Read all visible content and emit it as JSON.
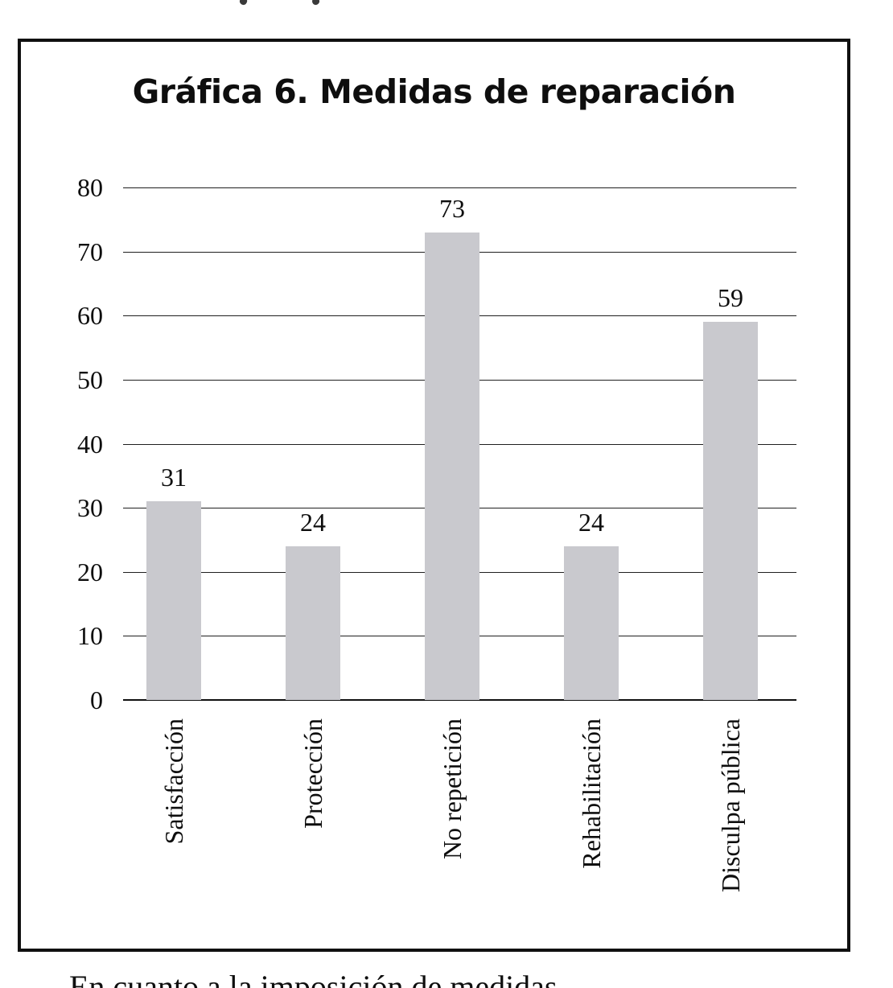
{
  "chart_data": {
    "type": "bar",
    "title": "Gráfica 6. Medidas de reparación",
    "categories": [
      "Satisfacción",
      "Protección",
      "No repetición",
      "Rehabilitación",
      "Disculpa pública"
    ],
    "values": [
      31,
      24,
      73,
      24,
      59
    ],
    "data_labels": [
      "31",
      "24",
      "73",
      "24",
      "59"
    ],
    "y_ticks": [
      0,
      10,
      20,
      30,
      40,
      50,
      60,
      70,
      80
    ],
    "ylim": [
      0,
      80
    ],
    "xlabel": "",
    "ylabel": "",
    "grid": "horizontal gridlines at every 10 units",
    "legend_position": "none",
    "bar_color": "#c9c9ce",
    "axis_color": "#101010",
    "frame": "black rectangular border around whole figure"
  },
  "cropped_text": {
    "bottom_line_fragment": "En cuanto a la imposición de medidas"
  }
}
